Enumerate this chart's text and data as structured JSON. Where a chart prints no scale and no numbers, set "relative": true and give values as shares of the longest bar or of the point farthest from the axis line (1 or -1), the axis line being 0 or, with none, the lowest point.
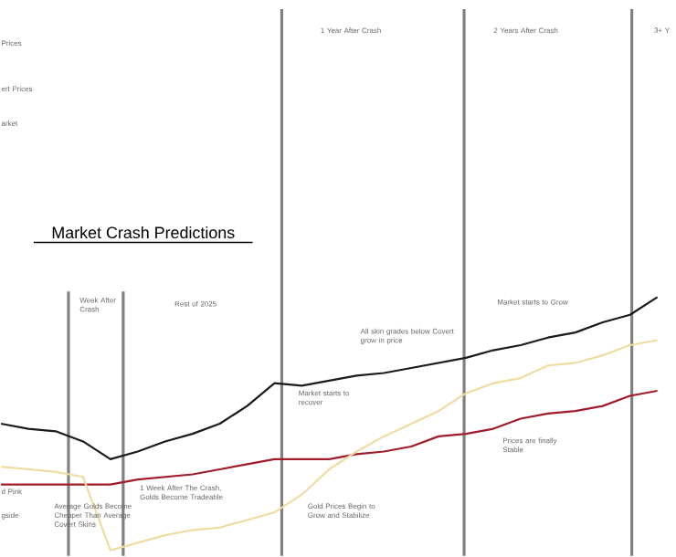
{
  "chart_data": {
    "type": "line",
    "title": "Market Crash Predictions",
    "relative": true,
    "categories": [
      null,
      null,
      null,
      null,
      null,
      null,
      null,
      null,
      null,
      null,
      null,
      null,
      null,
      null,
      null,
      null,
      null,
      null,
      null,
      null,
      null,
      null,
      null,
      null,
      null
    ],
    "series": [
      {
        "color": "#1a1a1a",
        "values": [
          0.5,
          0.48,
          0.47,
          0.43,
          0.36,
          0.39,
          0.43,
          0.46,
          0.5,
          0.57,
          0.66,
          0.65,
          0.67,
          0.69,
          0.7,
          0.72,
          0.74,
          0.76,
          0.79,
          0.81,
          0.84,
          0.86,
          0.9,
          0.93,
          1.0
        ]
      },
      {
        "color": "#a01c2a",
        "values": [
          0.26,
          0.26,
          0.26,
          0.26,
          0.26,
          0.28,
          0.29,
          0.3,
          0.32,
          0.34,
          0.36,
          0.36,
          0.36,
          0.38,
          0.39,
          0.41,
          0.45,
          0.46,
          0.48,
          0.52,
          0.54,
          0.55,
          0.57,
          0.61,
          0.63
        ]
      },
      {
        "color": "#f0dca0",
        "values": [
          0.33,
          0.32,
          0.31,
          0.29,
          0.0,
          0.03,
          0.06,
          0.08,
          0.09,
          0.12,
          0.15,
          0.22,
          0.32,
          0.39,
          0.45,
          0.5,
          0.55,
          0.62,
          0.66,
          0.68,
          0.73,
          0.74,
          0.77,
          0.81,
          0.83
        ]
      }
    ],
    "annotations": [
      "Prices",
      "ert Prices",
      "arket",
      "d Pink",
      "gside",
      "Average Golds Become Cheaper Than Average Covert Skins",
      "1 Week After The Crash, Golds Become Tradeable",
      "Market starts to recover",
      "All skin grades below Covert grow in price",
      "Market starts to Grow",
      "Prices are finally Stable",
      "Gold Prices Begin to Grow and Stabilize",
      "Week After Crash",
      "Rest of 2025",
      "1 Year After Crash",
      "2 Years After Crash",
      "3+ Y"
    ]
  }
}
